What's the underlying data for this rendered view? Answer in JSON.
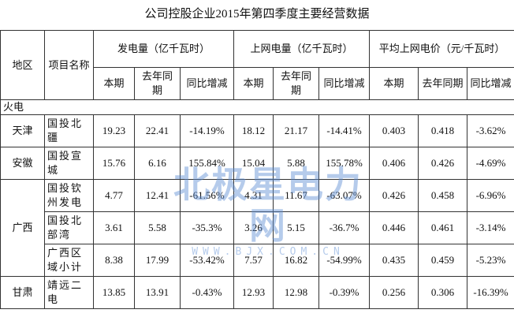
{
  "title": "公司控股企业2015年第四季度主要经营数据",
  "header": {
    "region": "地区",
    "item": "项目名称",
    "groups": [
      {
        "name": "发电量（亿千瓦时）",
        "sub": [
          "本期",
          "去年同期",
          "同比增减"
        ]
      },
      {
        "name": "上网电量（亿千瓦时）",
        "sub": [
          "本期",
          "去年同期",
          "同比增减"
        ]
      },
      {
        "name": "平均上网电价（元/千瓦时）",
        "sub": [
          "本期",
          "去年同期",
          "同比增减"
        ]
      }
    ]
  },
  "section": "火电",
  "regions": [
    {
      "name": "天津",
      "rows": [
        {
          "item": "国投北疆",
          "values": [
            "19.23",
            "22.41",
            "-14.19%",
            "18.12",
            "21.17",
            "-14.41%",
            "0.403",
            "0.418",
            "-3.62%"
          ]
        }
      ]
    },
    {
      "name": "安徽",
      "rows": [
        {
          "item": "国投宣城",
          "values": [
            "15.76",
            "6.16",
            "155.84%",
            "15.04",
            "5.88",
            "155.78%",
            "0.406",
            "0.426",
            "-4.69%"
          ]
        }
      ]
    },
    {
      "name": "广西",
      "rows": [
        {
          "item": "国投钦州发电",
          "values": [
            "4.77",
            "12.41",
            "-61.56%",
            "4.31",
            "11.67",
            "-63.07%",
            "0.426",
            "0.458",
            "-6.96%"
          ]
        },
        {
          "item": "国投北部湾",
          "values": [
            "3.61",
            "5.58",
            "-35.3%",
            "3.26",
            "5.15",
            "-36.7%",
            "0.446",
            "0.461",
            "-3.14%"
          ]
        },
        {
          "item": "广西区域小计",
          "values": [
            "8.38",
            "17.99",
            "-53.42%",
            "7.57",
            "16.82",
            "-54.99%",
            "0.435",
            "0.459",
            "-5.23%"
          ]
        }
      ]
    },
    {
      "name": "甘肃",
      "rows": [
        {
          "item": "靖远二电",
          "values": [
            "13.85",
            "13.91",
            "-0.43%",
            "12.93",
            "12.98",
            "-0.39%",
            "0.256",
            "0.306",
            "-16.39%"
          ]
        }
      ]
    }
  ],
  "watermark": {
    "name": "北极星电力网",
    "url": "WWW.BJX.COM.CN"
  }
}
